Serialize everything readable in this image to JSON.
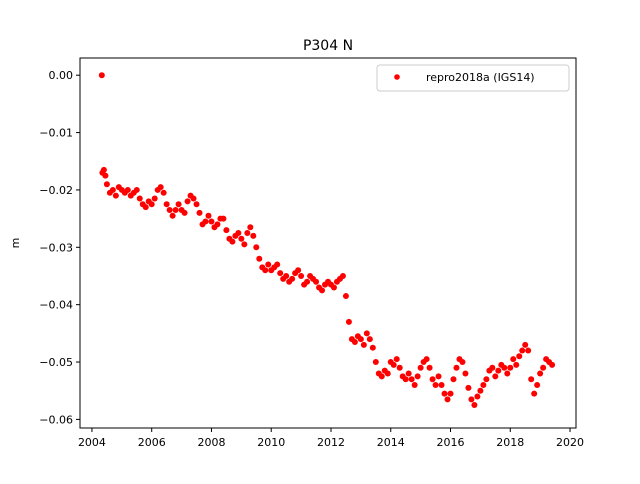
{
  "chart_data": {
    "type": "scatter",
    "title": "P304 N",
    "xlabel": "",
    "ylabel": "m",
    "xlim": [
      2003.6,
      2020.2
    ],
    "ylim": [
      -0.0615,
      0.003
    ],
    "xticks": [
      2004,
      2006,
      2008,
      2010,
      2012,
      2014,
      2016,
      2018,
      2020
    ],
    "xtick_labels": [
      "2004",
      "2006",
      "2008",
      "2010",
      "2012",
      "2014",
      "2016",
      "2018",
      "2020"
    ],
    "yticks": [
      0.0,
      -0.01,
      -0.02,
      -0.03,
      -0.04,
      -0.05,
      -0.06
    ],
    "ytick_labels": [
      "0.00",
      "−0.01",
      "−0.02",
      "−0.03",
      "−0.04",
      "−0.05",
      "−0.06"
    ],
    "grid": false,
    "legend_position": "top-right",
    "series": [
      {
        "name": "repro2018a (IGS14)",
        "color": "#ff0000",
        "marker": "circle",
        "x": [
          2004.33,
          2004.35,
          2004.4,
          2004.45,
          2004.5,
          2004.6,
          2004.7,
          2004.8,
          2004.9,
          2005.0,
          2005.1,
          2005.2,
          2005.3,
          2005.4,
          2005.5,
          2005.6,
          2005.7,
          2005.8,
          2005.9,
          2006.0,
          2006.1,
          2006.2,
          2006.3,
          2006.4,
          2006.5,
          2006.6,
          2006.7,
          2006.8,
          2006.9,
          2007.0,
          2007.1,
          2007.2,
          2007.3,
          2007.4,
          2007.5,
          2007.6,
          2007.7,
          2007.8,
          2007.9,
          2008.0,
          2008.1,
          2008.2,
          2008.3,
          2008.4,
          2008.5,
          2008.6,
          2008.7,
          2008.8,
          2008.9,
          2009.0,
          2009.1,
          2009.2,
          2009.3,
          2009.4,
          2009.5,
          2009.6,
          2009.7,
          2009.8,
          2009.9,
          2010.0,
          2010.1,
          2010.2,
          2010.3,
          2010.4,
          2010.5,
          2010.6,
          2010.7,
          2010.8,
          2010.9,
          2011.0,
          2011.1,
          2011.2,
          2011.3,
          2011.4,
          2011.5,
          2011.6,
          2011.7,
          2011.8,
          2011.9,
          2012.0,
          2012.1,
          2012.2,
          2012.3,
          2012.4,
          2012.5,
          2012.6,
          2012.7,
          2012.8,
          2012.9,
          2013.0,
          2013.1,
          2013.2,
          2013.3,
          2013.4,
          2013.5,
          2013.6,
          2013.7,
          2013.8,
          2013.9,
          2014.0,
          2014.1,
          2014.2,
          2014.3,
          2014.4,
          2014.5,
          2014.6,
          2014.7,
          2014.8,
          2014.9,
          2015.0,
          2015.1,
          2015.2,
          2015.3,
          2015.4,
          2015.5,
          2015.6,
          2015.7,
          2015.8,
          2015.9,
          2016.0,
          2016.1,
          2016.2,
          2016.3,
          2016.4,
          2016.5,
          2016.6,
          2016.7,
          2016.8,
          2016.9,
          2017.0,
          2017.1,
          2017.2,
          2017.3,
          2017.4,
          2017.5,
          2017.6,
          2017.7,
          2017.8,
          2017.9,
          2018.0,
          2018.1,
          2018.2,
          2018.3,
          2018.4,
          2018.5,
          2018.6,
          2018.7,
          2018.8,
          2018.9,
          2019.0,
          2019.1,
          2019.2,
          2019.3,
          2019.4
        ],
        "y": [
          0.0,
          -0.017,
          -0.0165,
          -0.0175,
          -0.019,
          -0.0205,
          -0.02,
          -0.021,
          -0.0195,
          -0.02,
          -0.0205,
          -0.02,
          -0.021,
          -0.0205,
          -0.02,
          -0.0215,
          -0.0225,
          -0.023,
          -0.022,
          -0.0225,
          -0.0215,
          -0.02,
          -0.0195,
          -0.0205,
          -0.0225,
          -0.0235,
          -0.0245,
          -0.0235,
          -0.0225,
          -0.0235,
          -0.024,
          -0.022,
          -0.021,
          -0.0215,
          -0.0225,
          -0.024,
          -0.026,
          -0.0255,
          -0.0245,
          -0.0255,
          -0.0265,
          -0.026,
          -0.025,
          -0.025,
          -0.027,
          -0.0285,
          -0.029,
          -0.028,
          -0.0275,
          -0.0285,
          -0.0295,
          -0.0275,
          -0.0265,
          -0.028,
          -0.03,
          -0.032,
          -0.0335,
          -0.034,
          -0.033,
          -0.034,
          -0.0335,
          -0.033,
          -0.0345,
          -0.0355,
          -0.035,
          -0.036,
          -0.0355,
          -0.0345,
          -0.034,
          -0.035,
          -0.0365,
          -0.036,
          -0.035,
          -0.0355,
          -0.036,
          -0.037,
          -0.0375,
          -0.0365,
          -0.036,
          -0.0365,
          -0.037,
          -0.036,
          -0.0355,
          -0.035,
          -0.0385,
          -0.043,
          -0.046,
          -0.0465,
          -0.0455,
          -0.046,
          -0.047,
          -0.045,
          -0.046,
          -0.0475,
          -0.05,
          -0.052,
          -0.0525,
          -0.0515,
          -0.052,
          -0.05,
          -0.0505,
          -0.0495,
          -0.051,
          -0.0525,
          -0.053,
          -0.052,
          -0.053,
          -0.054,
          -0.0525,
          -0.051,
          -0.05,
          -0.0495,
          -0.051,
          -0.053,
          -0.054,
          -0.0525,
          -0.054,
          -0.0555,
          -0.0565,
          -0.0555,
          -0.053,
          -0.051,
          -0.0495,
          -0.05,
          -0.052,
          -0.0545,
          -0.0565,
          -0.0575,
          -0.056,
          -0.055,
          -0.054,
          -0.053,
          -0.0515,
          -0.051,
          -0.0525,
          -0.0515,
          -0.0505,
          -0.051,
          -0.052,
          -0.051,
          -0.0495,
          -0.0505,
          -0.049,
          -0.048,
          -0.047,
          -0.048,
          -0.053,
          -0.0555,
          -0.054,
          -0.052,
          -0.051,
          -0.0495,
          -0.05,
          -0.0505
        ]
      }
    ]
  }
}
